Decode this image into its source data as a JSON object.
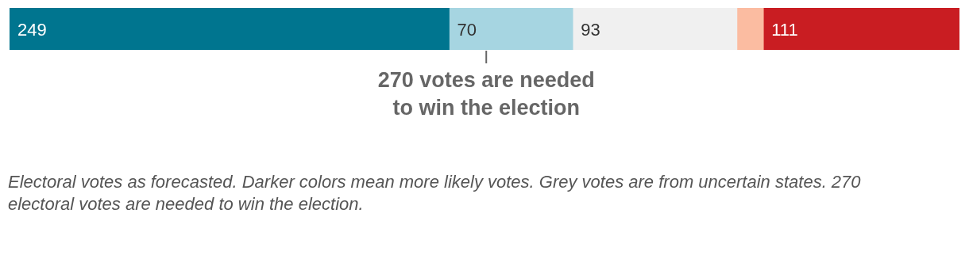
{
  "chart_data": {
    "type": "bar",
    "orientation": "horizontal",
    "stacked": true,
    "categories": [
      null
    ],
    "series": [
      {
        "color": "#00758f",
        "values": [
          249
        ],
        "value_labels": [
          "249"
        ]
      },
      {
        "color": "#a6d5e1",
        "values": [
          70
        ],
        "value_labels": [
          "70"
        ]
      },
      {
        "color": "#f0f0f0",
        "values": [
          93
        ],
        "value_labels": [
          "93"
        ]
      },
      {
        "color": "#fbbca1",
        "values": [
          15
        ],
        "value_labels": [
          null
        ]
      },
      {
        "color": "#c91d22",
        "values": [
          111
        ],
        "value_labels": [
          "111"
        ]
      }
    ],
    "ref_lines": [
      {
        "axis": "x",
        "value": 270,
        "label": "270 votes are needed to win the election"
      }
    ],
    "annotations": [
      "Electoral votes as forecasted. Darker colors mean more likely votes. Grey votes are from uncertain states. 270 electoral votes are needed to win the election."
    ],
    "legend": false,
    "tick_labels": false
  }
}
